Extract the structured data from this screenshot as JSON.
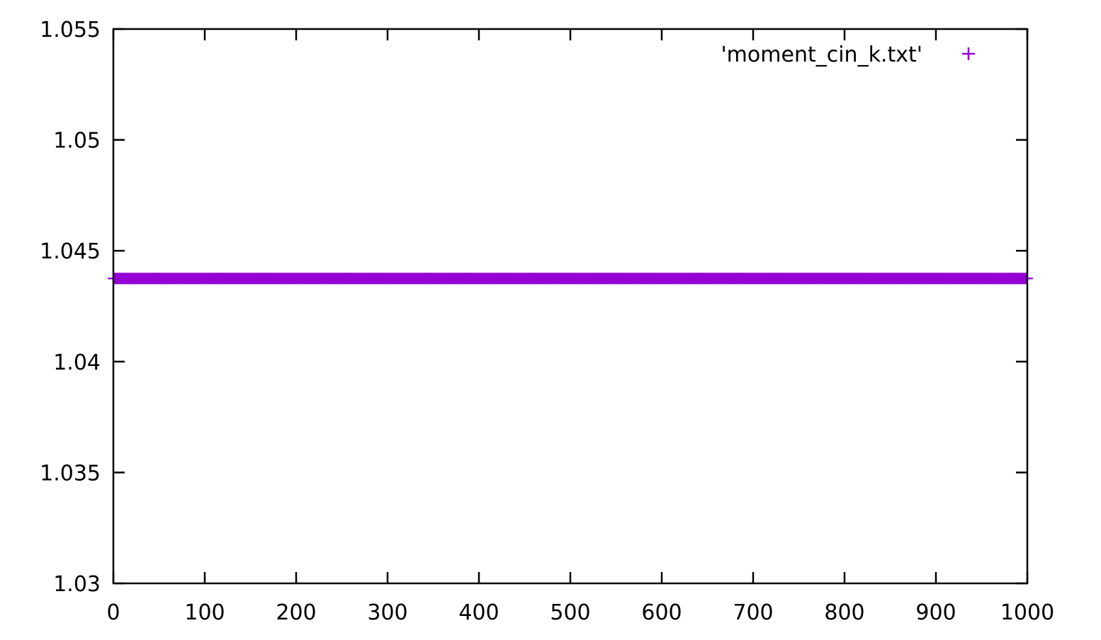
{
  "chart_data": {
    "type": "scatter",
    "title": "",
    "xlabel": "",
    "ylabel": "",
    "xlim": [
      0,
      1000
    ],
    "ylim": [
      1.03,
      1.055
    ],
    "x_ticks": [
      0,
      100,
      200,
      300,
      400,
      500,
      600,
      700,
      800,
      900,
      1000
    ],
    "y_ticks": [
      1.03,
      1.035,
      1.04,
      1.045,
      1.05,
      1.055
    ],
    "x_tick_labels": [
      "0",
      "100",
      "200",
      "300",
      "400",
      "500",
      "600",
      "700",
      "800",
      "900",
      "1000"
    ],
    "y_tick_labels": [
      "1.03",
      "1.035",
      "1.04",
      "1.045",
      "1.05",
      "1.055"
    ],
    "grid": false,
    "legend_position": "top-right",
    "series": [
      {
        "name": "'moment_cin_k.txt'",
        "marker": "+",
        "color": "#9400d3",
        "x_start": 0,
        "x_end": 1000,
        "x_step": 1,
        "y_constant": 1.04375
      }
    ]
  }
}
